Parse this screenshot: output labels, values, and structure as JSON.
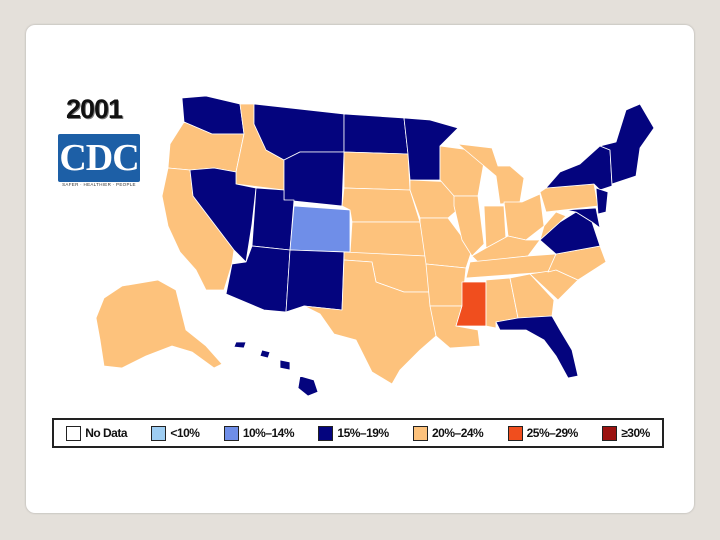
{
  "title": "2001",
  "logo": {
    "text": "CDC",
    "tagline": "SAFER · HEALTHIER · PEOPLE"
  },
  "colors": {
    "no_data": "#ffffff",
    "lt10": "#9ecdf2",
    "c10_14": "#6f8ee8",
    "c15_19": "#04047e",
    "c20_24": "#fdc27c",
    "c25_29": "#f04e1e",
    "ge30": "#9b1210"
  },
  "legend": [
    {
      "label": "No Data",
      "color": "#ffffff"
    },
    {
      "label": "<10%",
      "color": "#9ecdf2"
    },
    {
      "label": "10%–14%",
      "color": "#6f8ee8"
    },
    {
      "label": "15%–19%",
      "color": "#04047e"
    },
    {
      "label": "20%–24%",
      "color": "#fdc27c"
    },
    {
      "label": "25%–29%",
      "color": "#f04e1e"
    },
    {
      "label": "≥30%",
      "color": "#9b1210"
    }
  ]
}
